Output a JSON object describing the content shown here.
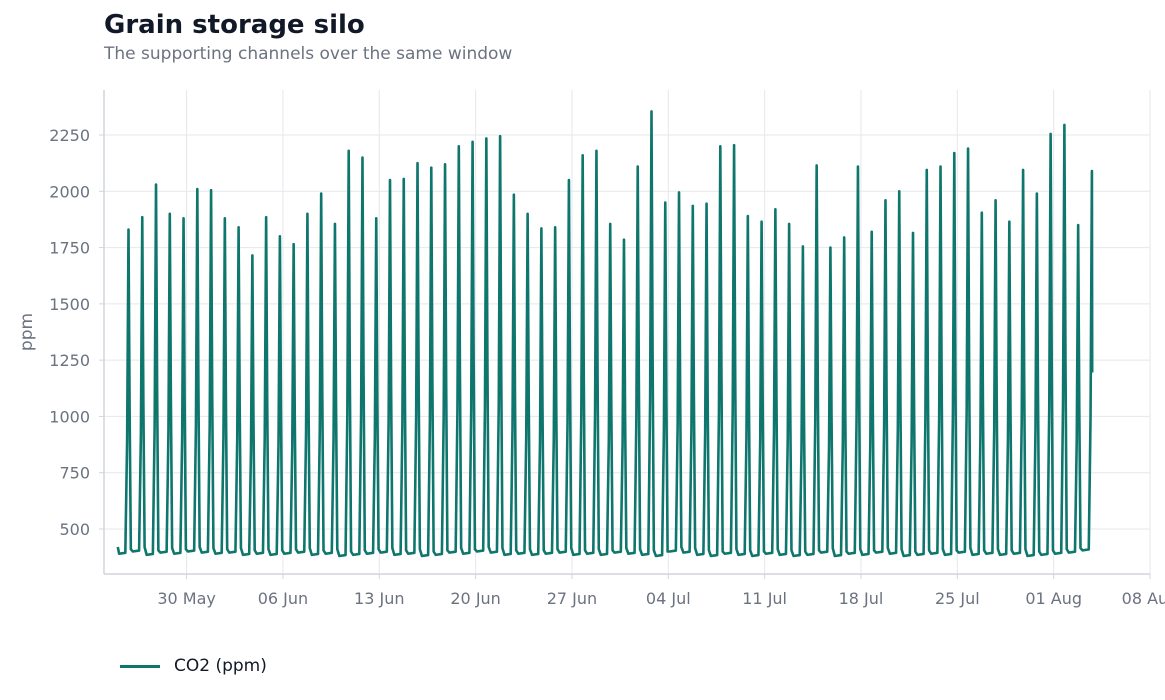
{
  "header": {
    "title": "Grain storage silo",
    "subtitle": "The supporting channels over the same window"
  },
  "legend": {
    "label": "CO2 (ppm)"
  },
  "chart_data": {
    "type": "line",
    "title": "Grain storage silo",
    "subtitle": "The supporting channels over the same window",
    "xlabel": "",
    "ylabel": "ppm",
    "year": 2024,
    "x_start": "2024-05-25",
    "x_end": "2024-08-07",
    "xlim": [
      "2024-05-24",
      "2024-08-08"
    ],
    "ylim": [
      300,
      2450
    ],
    "y_ticks": [
      500,
      750,
      1000,
      1250,
      1500,
      1750,
      2000,
      2250
    ],
    "x_ticks": [
      {
        "date": "2024-05-30",
        "label": "30 May"
      },
      {
        "date": "2024-06-06",
        "label": "06 Jun"
      },
      {
        "date": "2024-06-13",
        "label": "13 Jun"
      },
      {
        "date": "2024-06-20",
        "label": "20 Jun"
      },
      {
        "date": "2024-06-27",
        "label": "27 Jun"
      },
      {
        "date": "2024-07-04",
        "label": "04 Jul"
      },
      {
        "date": "2024-07-11",
        "label": "11 Jul"
      },
      {
        "date": "2024-07-18",
        "label": "18 Jul"
      },
      {
        "date": "2024-07-25",
        "label": "25 Jul"
      },
      {
        "date": "2024-08-01",
        "label": "01 Aug"
      },
      {
        "date": "2024-08-08",
        "label": "08 Aug"
      }
    ],
    "grid": true,
    "legend_position": "bottom-left",
    "colors": {
      "series": "#0f766e",
      "grid": "#e5e7eb",
      "axis": "#d1d5db",
      "tick_text": "#6b7280"
    },
    "series": [
      {
        "name": "CO2 (ppm)",
        "daily_peak_ppm": [
          1830,
          1885,
          2030,
          1900,
          1880,
          2010,
          2005,
          1880,
          1840,
          1715,
          1885,
          1800,
          1765,
          1900,
          1990,
          1855,
          2180,
          2150,
          1880,
          2050,
          2055,
          2125,
          2105,
          2120,
          2200,
          2220,
          2235,
          2245,
          1985,
          1900,
          1835,
          1840,
          2050,
          2160,
          2180,
          1855,
          1785,
          2110,
          2355,
          1950,
          1995,
          1935,
          1945,
          2200,
          2205,
          1890,
          1865,
          1920,
          1855,
          1755,
          2115,
          1750,
          1795,
          2110,
          1820,
          1960,
          2000,
          1815,
          2095,
          2110,
          2170,
          2190,
          1905,
          1960,
          1865,
          2095,
          1990,
          2255,
          2295,
          1850,
          2090
        ],
        "daily_baseline_ppm": [
          390,
          400,
          385,
          395,
          390,
          400,
          395,
          390,
          395,
          385,
          390,
          385,
          390,
          395,
          385,
          390,
          380,
          385,
          390,
          395,
          385,
          390,
          380,
          385,
          395,
          390,
          400,
          395,
          385,
          390,
          385,
          390,
          395,
          385,
          390,
          385,
          395,
          390,
          385,
          380,
          400,
          395,
          385,
          380,
          390,
          385,
          380,
          390,
          385,
          380,
          385,
          395,
          380,
          390,
          385,
          395,
          390,
          380,
          385,
          390,
          385,
          395,
          385,
          390,
          385,
          390,
          380,
          385,
          390,
          395,
          405
        ],
        "start_value_ppm": 420,
        "end_value_ppm": 1195
      }
    ]
  }
}
